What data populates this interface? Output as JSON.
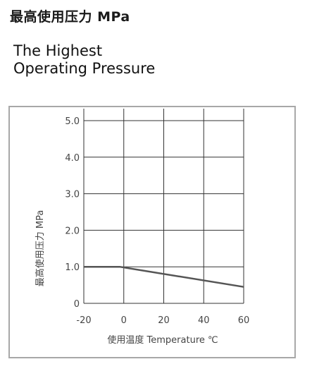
{
  "header": {
    "title_cn": "最高使用压力 MPa",
    "title_en_line1": "The Highest",
    "title_en_line2": "Operating Pressure"
  },
  "colors": {
    "line": "#555555",
    "grid": "#333333",
    "frame": "#a8a8a8",
    "text": "#444444"
  },
  "chart_data": {
    "type": "line",
    "xlabel": "使用温度 Temperature ℃",
    "ylabel": "最高使用压力 MPa",
    "xlim": [
      -20,
      60
    ],
    "ylim": [
      0,
      5
    ],
    "x_ticks": [
      -20,
      0,
      20,
      40,
      60
    ],
    "x_tick_labels": [
      "-20",
      "0",
      "20",
      "40",
      "60"
    ],
    "y_ticks": [
      0,
      1,
      2,
      3,
      4,
      5
    ],
    "y_tick_labels": [
      "0",
      "1.0",
      "2.0",
      "3.0",
      "4.0",
      "5.0"
    ],
    "grid": true,
    "series": [
      {
        "x": [
          -20,
          -2,
          60
        ],
        "y": [
          1.0,
          1.0,
          0.45
        ]
      }
    ]
  }
}
